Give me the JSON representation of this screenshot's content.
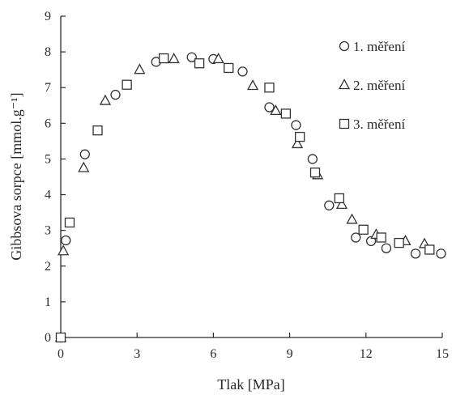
{
  "chart_data": {
    "type": "scatter",
    "xlabel": "Tlak [MPa]",
    "ylabel": "Gibbsova sorpce [mmol.g⁻¹]",
    "xlim": [
      0,
      15
    ],
    "ylim": [
      0,
      9
    ],
    "x_ticks": [
      0,
      3,
      6,
      9,
      12,
      15
    ],
    "y_ticks": [
      0,
      1,
      2,
      3,
      4,
      5,
      6,
      7,
      8,
      9
    ],
    "grid": false,
    "legend_position": "top-right",
    "series": [
      {
        "name": "1. měření",
        "marker": "circle",
        "points": [
          [
            0.0,
            0.0
          ],
          [
            0.2,
            2.72
          ],
          [
            0.95,
            5.13
          ],
          [
            2.15,
            6.8
          ],
          [
            3.75,
            7.72
          ],
          [
            5.15,
            7.85
          ],
          [
            6.0,
            7.8
          ],
          [
            7.15,
            7.45
          ],
          [
            8.2,
            6.45
          ],
          [
            9.25,
            5.95
          ],
          [
            9.9,
            5.0
          ],
          [
            10.55,
            3.7
          ],
          [
            11.6,
            2.8
          ],
          [
            12.2,
            2.7
          ],
          [
            12.8,
            2.5
          ],
          [
            13.95,
            2.35
          ],
          [
            14.95,
            2.35
          ]
        ]
      },
      {
        "name": "2. měření",
        "marker": "triangle",
        "points": [
          [
            0.0,
            0.0
          ],
          [
            0.1,
            2.42
          ],
          [
            0.9,
            4.75
          ],
          [
            1.75,
            6.63
          ],
          [
            3.1,
            7.5
          ],
          [
            4.45,
            7.8
          ],
          [
            6.2,
            7.8
          ],
          [
            7.55,
            7.05
          ],
          [
            8.45,
            6.35
          ],
          [
            9.3,
            5.42
          ],
          [
            10.1,
            4.55
          ],
          [
            11.05,
            3.72
          ],
          [
            11.45,
            3.3
          ],
          [
            12.4,
            2.88
          ],
          [
            13.55,
            2.7
          ],
          [
            14.3,
            2.62
          ]
        ]
      },
      {
        "name": "3. měření",
        "marker": "square",
        "points": [
          [
            0.0,
            0.0
          ],
          [
            0.35,
            3.22
          ],
          [
            1.45,
            5.8
          ],
          [
            2.6,
            7.08
          ],
          [
            4.05,
            7.82
          ],
          [
            5.45,
            7.68
          ],
          [
            6.6,
            7.55
          ],
          [
            8.2,
            7.0
          ],
          [
            8.85,
            6.27
          ],
          [
            9.4,
            5.62
          ],
          [
            10.0,
            4.62
          ],
          [
            10.95,
            3.9
          ],
          [
            11.9,
            3.02
          ],
          [
            12.6,
            2.8
          ],
          [
            13.3,
            2.65
          ],
          [
            14.5,
            2.46
          ]
        ]
      }
    ]
  }
}
